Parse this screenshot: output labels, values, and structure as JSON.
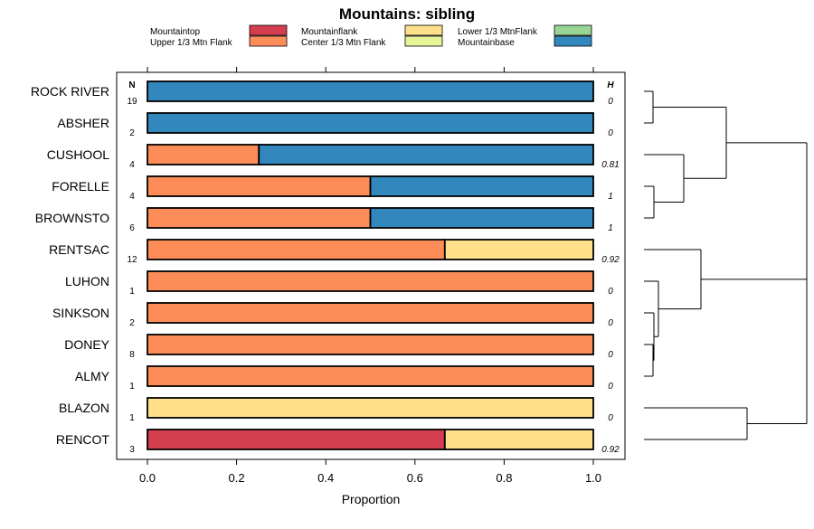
{
  "chart_data": {
    "type": "bar",
    "orientation": "horizontal",
    "stacked": true,
    "title": "Mountains: sibling",
    "xlabel": "Proportion",
    "ylabel": "",
    "xlim": [
      0,
      1
    ],
    "x_ticks": [
      0,
      0.2,
      0.4,
      0.6,
      0.8,
      1
    ],
    "x_tick_labels": [
      "0.0",
      "0.2",
      "0.4",
      "0.6",
      "0.8",
      "1.0"
    ],
    "n_header": "N",
    "h_header": "H",
    "legend": [
      {
        "name": "Mountaintop",
        "color": "#d53e4f"
      },
      {
        "name": "Upper 1/3 Mtn Flank",
        "color": "#fc8d59"
      },
      {
        "name": "Mountainflank",
        "color": "#fee08b"
      },
      {
        "name": "Center 1/3 Mtn Flank",
        "color": "#e6f598"
      },
      {
        "name": "Lower 1/3 MtnFlank",
        "color": "#99d594"
      },
      {
        "name": "Mountainbase",
        "color": "#3288bd"
      }
    ],
    "categories": [
      "ROCK RIVER",
      "ABSHER",
      "CUSHOOL",
      "FORELLE",
      "BROWNSTO",
      "RENTSAC",
      "LUHON",
      "SINKSON",
      "DONEY",
      "ALMY",
      "BLAZON",
      "RENCOT"
    ],
    "n": [
      "19",
      "2",
      "4",
      "4",
      "6",
      "12",
      "1",
      "2",
      "8",
      "1",
      "1",
      "3"
    ],
    "h": [
      "0",
      "0",
      "0.81",
      "1",
      "1",
      "0.92",
      "0",
      "0",
      "0",
      "0",
      "0",
      "0.92"
    ],
    "series": [
      {
        "name": "Mountaintop",
        "values": [
          0,
          0,
          0,
          0,
          0,
          0,
          0,
          0,
          0,
          0,
          0,
          0.667
        ]
      },
      {
        "name": "Upper 1/3 Mtn Flank",
        "values": [
          0,
          0,
          0.25,
          0.5,
          0.5,
          0.667,
          1,
          1,
          1,
          1,
          0,
          0
        ]
      },
      {
        "name": "Mountainflank",
        "values": [
          0,
          0,
          0,
          0,
          0,
          0.333,
          0,
          0,
          0,
          0,
          1,
          0.333
        ]
      },
      {
        "name": "Center 1/3 Mtn Flank",
        "values": [
          0,
          0,
          0,
          0,
          0,
          0,
          0,
          0,
          0,
          0,
          0,
          0
        ]
      },
      {
        "name": "Lower 1/3 MtnFlank",
        "values": [
          0,
          0,
          0,
          0,
          0,
          0,
          0,
          0,
          0,
          0,
          0,
          0
        ]
      },
      {
        "name": "Mountainbase",
        "values": [
          1,
          1,
          0.75,
          0.5,
          0.5,
          0,
          0,
          0,
          0,
          0,
          0,
          0
        ]
      }
    ],
    "dendrogram": true
  }
}
